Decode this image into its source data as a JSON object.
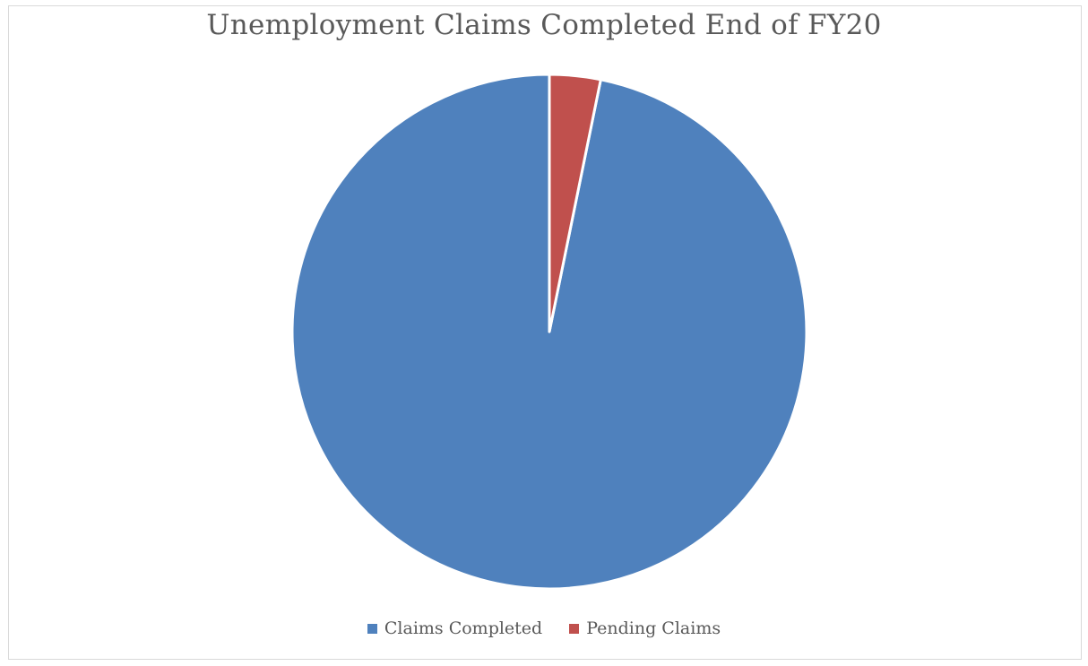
{
  "chart_data": {
    "type": "pie",
    "title": "Unemployment Claims Completed End of FY20",
    "categories": [
      "Claims Completed",
      "Pending Claims"
    ],
    "values": [
      96.8,
      3.2
    ],
    "colors": [
      "#4f81bd",
      "#c0504d"
    ],
    "start_angle_deg": 0,
    "direction": "counterclockwise",
    "legend": "bottom"
  }
}
